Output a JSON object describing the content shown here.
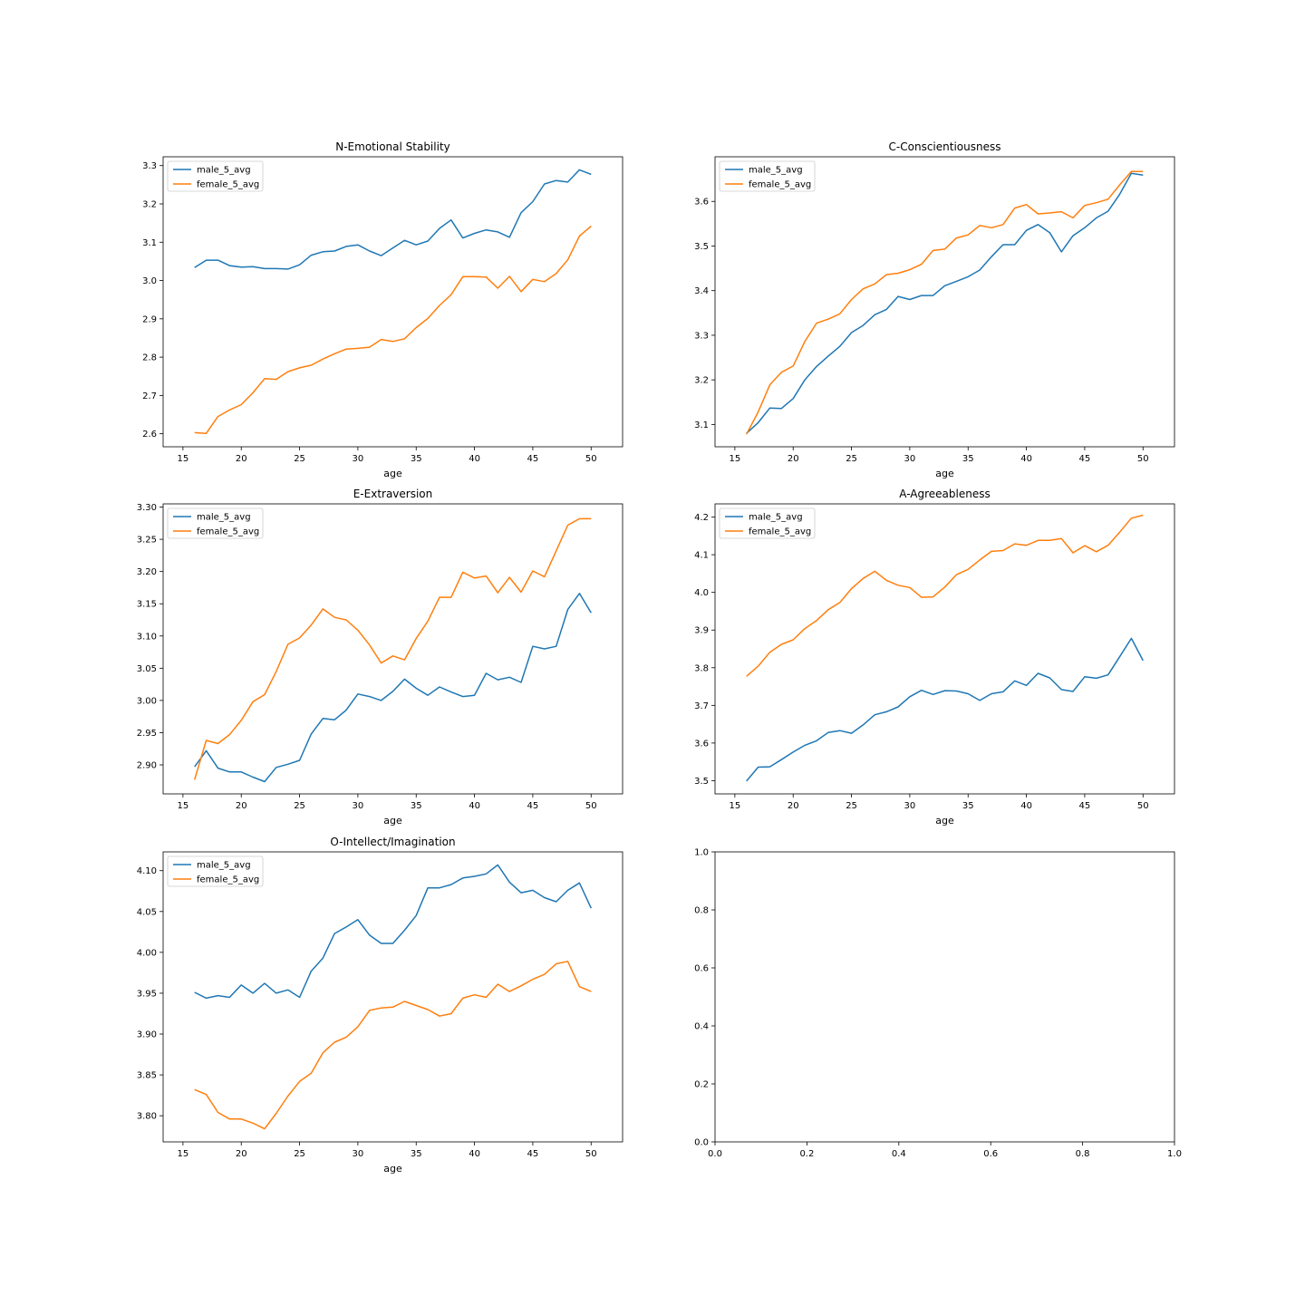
{
  "figure": {
    "colors": {
      "male": "#1f77b4",
      "female": "#ff7f0e"
    }
  },
  "chart_data": [
    {
      "type": "line",
      "title": "N-Emotional Stability",
      "xlabel": "age",
      "ylabel": "",
      "xlim": [
        13.3,
        52.7
      ],
      "ylim": [
        2.566,
        3.323
      ],
      "xticks": [
        15,
        20,
        25,
        30,
        35,
        40,
        45,
        50
      ],
      "yticks": [
        2.6,
        2.7,
        2.8,
        2.9,
        3.0,
        3.1,
        3.2,
        3.3
      ],
      "ytick_labels": [
        "2.6",
        "2.7",
        "2.8",
        "2.9",
        "3.0",
        "3.1",
        "3.2",
        "3.3"
      ],
      "legend": "upper-left",
      "grid": false,
      "x": [
        16,
        17,
        18,
        19,
        20,
        21,
        22,
        23,
        24,
        25,
        26,
        27,
        28,
        29,
        30,
        31,
        32,
        33,
        34,
        35,
        36,
        37,
        38,
        39,
        40,
        41,
        42,
        43,
        44,
        45,
        46,
        47,
        48,
        49,
        50
      ],
      "series": [
        {
          "name": "male_5_avg",
          "values": [
            3.034,
            3.053,
            3.053,
            3.039,
            3.035,
            3.036,
            3.031,
            3.031,
            3.03,
            3.041,
            3.066,
            3.075,
            3.077,
            3.089,
            3.093,
            3.077,
            3.065,
            3.085,
            3.105,
            3.093,
            3.103,
            3.136,
            3.158,
            3.111,
            3.123,
            3.132,
            3.127,
            3.113,
            3.177,
            3.206,
            3.252,
            3.261,
            3.257,
            3.289,
            3.277
          ]
        },
        {
          "name": "female_5_avg",
          "values": [
            2.603,
            2.601,
            2.645,
            2.662,
            2.676,
            2.707,
            2.744,
            2.742,
            2.762,
            2.772,
            2.779,
            2.795,
            2.809,
            2.821,
            2.823,
            2.826,
            2.846,
            2.841,
            2.848,
            2.877,
            2.901,
            2.935,
            2.963,
            3.01,
            3.01,
            3.009,
            2.98,
            3.011,
            2.971,
            3.003,
            2.997,
            3.018,
            3.054,
            3.116,
            3.142
          ]
        }
      ]
    },
    {
      "type": "line",
      "title": "C-Conscientiousness",
      "xlabel": "age",
      "ylabel": "",
      "xlim": [
        13.3,
        52.7
      ],
      "ylim": [
        3.05,
        3.7
      ],
      "xticks": [
        15,
        20,
        25,
        30,
        35,
        40,
        45,
        50
      ],
      "yticks": [
        3.1,
        3.2,
        3.3,
        3.4,
        3.5,
        3.6
      ],
      "ytick_labels": [
        "3.1",
        "3.2",
        "3.3",
        "3.4",
        "3.5",
        "3.6"
      ],
      "legend": "upper-left",
      "grid": false,
      "x": [
        16,
        17,
        18,
        19,
        20,
        21,
        22,
        23,
        24,
        25,
        26,
        27,
        28,
        29,
        30,
        31,
        32,
        33,
        34,
        35,
        36,
        37,
        38,
        39,
        40,
        41,
        42,
        43,
        44,
        45,
        46,
        47,
        48,
        49,
        50
      ],
      "series": [
        {
          "name": "male_5_avg",
          "values": [
            3.08,
            3.104,
            3.137,
            3.136,
            3.158,
            3.2,
            3.23,
            3.253,
            3.275,
            3.306,
            3.322,
            3.346,
            3.358,
            3.387,
            3.38,
            3.389,
            3.389,
            3.411,
            3.421,
            3.431,
            3.446,
            3.476,
            3.503,
            3.503,
            3.535,
            3.548,
            3.53,
            3.487,
            3.523,
            3.541,
            3.563,
            3.578,
            3.616,
            3.663,
            3.659
          ]
        },
        {
          "name": "female_5_avg",
          "values": [
            3.078,
            3.128,
            3.189,
            3.217,
            3.231,
            3.286,
            3.327,
            3.336,
            3.348,
            3.38,
            3.404,
            3.415,
            3.436,
            3.439,
            3.447,
            3.459,
            3.49,
            3.493,
            3.518,
            3.525,
            3.546,
            3.541,
            3.548,
            3.585,
            3.593,
            3.572,
            3.574,
            3.577,
            3.563,
            3.591,
            3.597,
            3.605,
            3.637,
            3.667,
            3.667
          ]
        }
      ]
    },
    {
      "type": "line",
      "title": "E-Extraversion",
      "xlabel": "age",
      "ylabel": "",
      "xlim": [
        13.3,
        52.7
      ],
      "ylim": [
        2.855,
        3.305
      ],
      "xticks": [
        15,
        20,
        25,
        30,
        35,
        40,
        45,
        50
      ],
      "yticks": [
        2.9,
        2.95,
        3.0,
        3.05,
        3.1,
        3.15,
        3.2,
        3.25,
        3.3
      ],
      "ytick_labels": [
        "2.90",
        "2.95",
        "3.00",
        "3.05",
        "3.10",
        "3.15",
        "3.20",
        "3.25",
        "3.30"
      ],
      "legend": "upper-left",
      "grid": false,
      "x": [
        16,
        17,
        18,
        19,
        20,
        21,
        22,
        23,
        24,
        25,
        26,
        27,
        28,
        29,
        30,
        31,
        32,
        33,
        34,
        35,
        36,
        37,
        38,
        39,
        40,
        41,
        42,
        43,
        44,
        45,
        46,
        47,
        48,
        49,
        50
      ],
      "series": [
        {
          "name": "male_5_avg",
          "values": [
            2.897,
            2.922,
            2.895,
            2.889,
            2.889,
            2.881,
            2.874,
            2.896,
            2.901,
            2.907,
            2.948,
            2.972,
            2.97,
            2.985,
            3.01,
            3.006,
            3.0,
            3.014,
            3.033,
            3.019,
            3.008,
            3.021,
            3.013,
            3.006,
            3.008,
            3.042,
            3.032,
            3.036,
            3.028,
            3.084,
            3.08,
            3.084,
            3.141,
            3.166,
            3.136
          ]
        },
        {
          "name": "female_5_avg",
          "values": [
            2.877,
            2.938,
            2.933,
            2.947,
            2.969,
            2.998,
            3.009,
            3.045,
            3.087,
            3.097,
            3.117,
            3.142,
            3.129,
            3.125,
            3.109,
            3.086,
            3.058,
            3.069,
            3.063,
            3.096,
            3.123,
            3.16,
            3.16,
            3.199,
            3.19,
            3.193,
            3.167,
            3.191,
            3.168,
            3.201,
            3.192,
            3.232,
            3.272,
            3.282,
            3.282
          ]
        }
      ]
    },
    {
      "type": "line",
      "title": "A-Agreeableness",
      "xlabel": "age",
      "ylabel": "",
      "xlim": [
        13.3,
        52.7
      ],
      "ylim": [
        3.465,
        4.235
      ],
      "xticks": [
        15,
        20,
        25,
        30,
        35,
        40,
        45,
        50
      ],
      "yticks": [
        3.5,
        3.6,
        3.7,
        3.8,
        3.9,
        4.0,
        4.1,
        4.2
      ],
      "ytick_labels": [
        "3.5",
        "3.6",
        "3.7",
        "3.8",
        "3.9",
        "4.0",
        "4.1",
        "4.2"
      ],
      "legend": "upper-left",
      "grid": false,
      "x": [
        16,
        17,
        18,
        19,
        20,
        21,
        22,
        23,
        24,
        25,
        26,
        27,
        28,
        29,
        30,
        31,
        32,
        33,
        34,
        35,
        36,
        37,
        38,
        39,
        40,
        41,
        42,
        43,
        44,
        45,
        46,
        47,
        48,
        49,
        50
      ],
      "series": [
        {
          "name": "male_5_avg",
          "values": [
            3.499,
            3.536,
            3.537,
            3.556,
            3.576,
            3.594,
            3.606,
            3.628,
            3.633,
            3.626,
            3.648,
            3.675,
            3.683,
            3.696,
            3.723,
            3.74,
            3.729,
            3.739,
            3.738,
            3.731,
            3.713,
            3.731,
            3.736,
            3.765,
            3.753,
            3.785,
            3.773,
            3.742,
            3.737,
            3.776,
            3.772,
            3.781,
            3.829,
            3.878,
            3.819
          ]
        },
        {
          "name": "female_5_avg",
          "values": [
            3.777,
            3.804,
            3.841,
            3.862,
            3.874,
            3.904,
            3.925,
            3.954,
            3.973,
            4.01,
            4.037,
            4.056,
            4.032,
            4.019,
            4.013,
            3.987,
            3.988,
            4.014,
            4.047,
            4.061,
            4.086,
            4.109,
            4.111,
            4.129,
            4.125,
            4.138,
            4.138,
            4.143,
            4.105,
            4.124,
            4.108,
            4.125,
            4.16,
            4.197,
            4.205
          ]
        }
      ]
    },
    {
      "type": "line",
      "title": "O-Intellect/Imagination",
      "xlabel": "age",
      "ylabel": "",
      "xlim": [
        13.3,
        52.7
      ],
      "ylim": [
        3.768,
        4.123
      ],
      "xticks": [
        15,
        20,
        25,
        30,
        35,
        40,
        45,
        50
      ],
      "yticks": [
        3.8,
        3.85,
        3.9,
        3.95,
        4.0,
        4.05,
        4.1
      ],
      "ytick_labels": [
        "3.80",
        "3.85",
        "3.90",
        "3.95",
        "4.00",
        "4.05",
        "4.10"
      ],
      "legend": "upper-left",
      "grid": false,
      "x": [
        16,
        17,
        18,
        19,
        20,
        21,
        22,
        23,
        24,
        25,
        26,
        27,
        28,
        29,
        30,
        31,
        32,
        33,
        34,
        35,
        36,
        37,
        38,
        39,
        40,
        41,
        42,
        43,
        44,
        45,
        46,
        47,
        48,
        49,
        50
      ],
      "series": [
        {
          "name": "male_5_avg",
          "values": [
            3.951,
            3.944,
            3.947,
            3.945,
            3.96,
            3.95,
            3.962,
            3.95,
            3.954,
            3.945,
            3.977,
            3.993,
            4.023,
            4.031,
            4.04,
            4.021,
            4.011,
            4.011,
            4.027,
            4.045,
            4.079,
            4.079,
            4.083,
            4.091,
            4.093,
            4.096,
            4.107,
            4.086,
            4.073,
            4.076,
            4.067,
            4.062,
            4.076,
            4.085,
            4.054
          ]
        },
        {
          "name": "female_5_avg",
          "values": [
            3.832,
            3.826,
            3.804,
            3.796,
            3.796,
            3.791,
            3.784,
            3.803,
            3.824,
            3.842,
            3.852,
            3.877,
            3.89,
            3.896,
            3.909,
            3.929,
            3.932,
            3.933,
            3.94,
            3.935,
            3.93,
            3.922,
            3.925,
            3.944,
            3.948,
            3.945,
            3.961,
            3.952,
            3.959,
            3.967,
            3.973,
            3.986,
            3.989,
            3.958,
            3.952
          ]
        }
      ]
    },
    {
      "type": "line",
      "title": "",
      "xlabel": "",
      "ylabel": "",
      "xlim": [
        0,
        1
      ],
      "ylim": [
        0,
        1
      ],
      "xticks": [
        0.0,
        0.2,
        0.4,
        0.6,
        0.8,
        1.0
      ],
      "yticks": [
        0.0,
        0.2,
        0.4,
        0.6,
        0.8,
        1.0
      ],
      "xtick_labels": [
        "0.0",
        "0.2",
        "0.4",
        "0.6",
        "0.8",
        "1.0"
      ],
      "ytick_labels": [
        "0.0",
        "0.2",
        "0.4",
        "0.6",
        "0.8",
        "1.0"
      ],
      "legend": "none",
      "grid": false,
      "x": [],
      "series": []
    }
  ]
}
